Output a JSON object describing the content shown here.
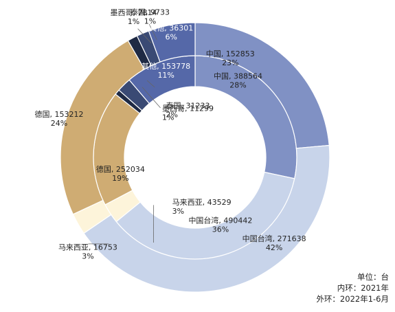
{
  "chart_data": {
    "type": "donut",
    "unit_text": "单位：台",
    "inner_ring_text": "内环：2021年",
    "outer_ring_text": "外环：2022年1-6月",
    "rings": [
      {
        "period": "2021年",
        "segments": [
          {
            "name": "中国",
            "value": 388564,
            "percent": "28%"
          },
          {
            "name": "中国台湾",
            "value": 490442,
            "percent": "36%"
          },
          {
            "name": "马来西亚",
            "value": 43529,
            "percent": "3%"
          },
          {
            "name": "德国",
            "value": 252034,
            "percent": "19%"
          },
          {
            "name": "墨西哥",
            "value": 11299,
            "percent": "1%"
          },
          {
            "name": "泰国",
            "value": 31233,
            "percent": "2%"
          },
          {
            "name": "其他",
            "value": 153778,
            "percent": "11%"
          }
        ]
      },
      {
        "period": "2022年1-6月",
        "segments": [
          {
            "name": "中国",
            "value": 152853,
            "percent": "23%"
          },
          {
            "name": "中国台湾",
            "value": 271638,
            "percent": "42%"
          },
          {
            "name": "马来西亚",
            "value": 16753,
            "percent": "3%"
          },
          {
            "name": "德国",
            "value": 153212,
            "percent": "24%"
          },
          {
            "name": "墨西哥",
            "value": 7814,
            "percent": "1%"
          },
          {
            "name": "泰国",
            "value": 9733,
            "percent": "1%"
          },
          {
            "name": "其他",
            "value": 36301,
            "percent": "6%"
          }
        ]
      }
    ],
    "colors": {
      "中国": "#8091c4",
      "中国台湾": "#c8d4ea",
      "马来西亚": "#fdf4da",
      "德国": "#cfac73",
      "墨西哥": "#1f2a44",
      "泰国": "#3a4a74",
      "其他": "#5568a8"
    }
  }
}
